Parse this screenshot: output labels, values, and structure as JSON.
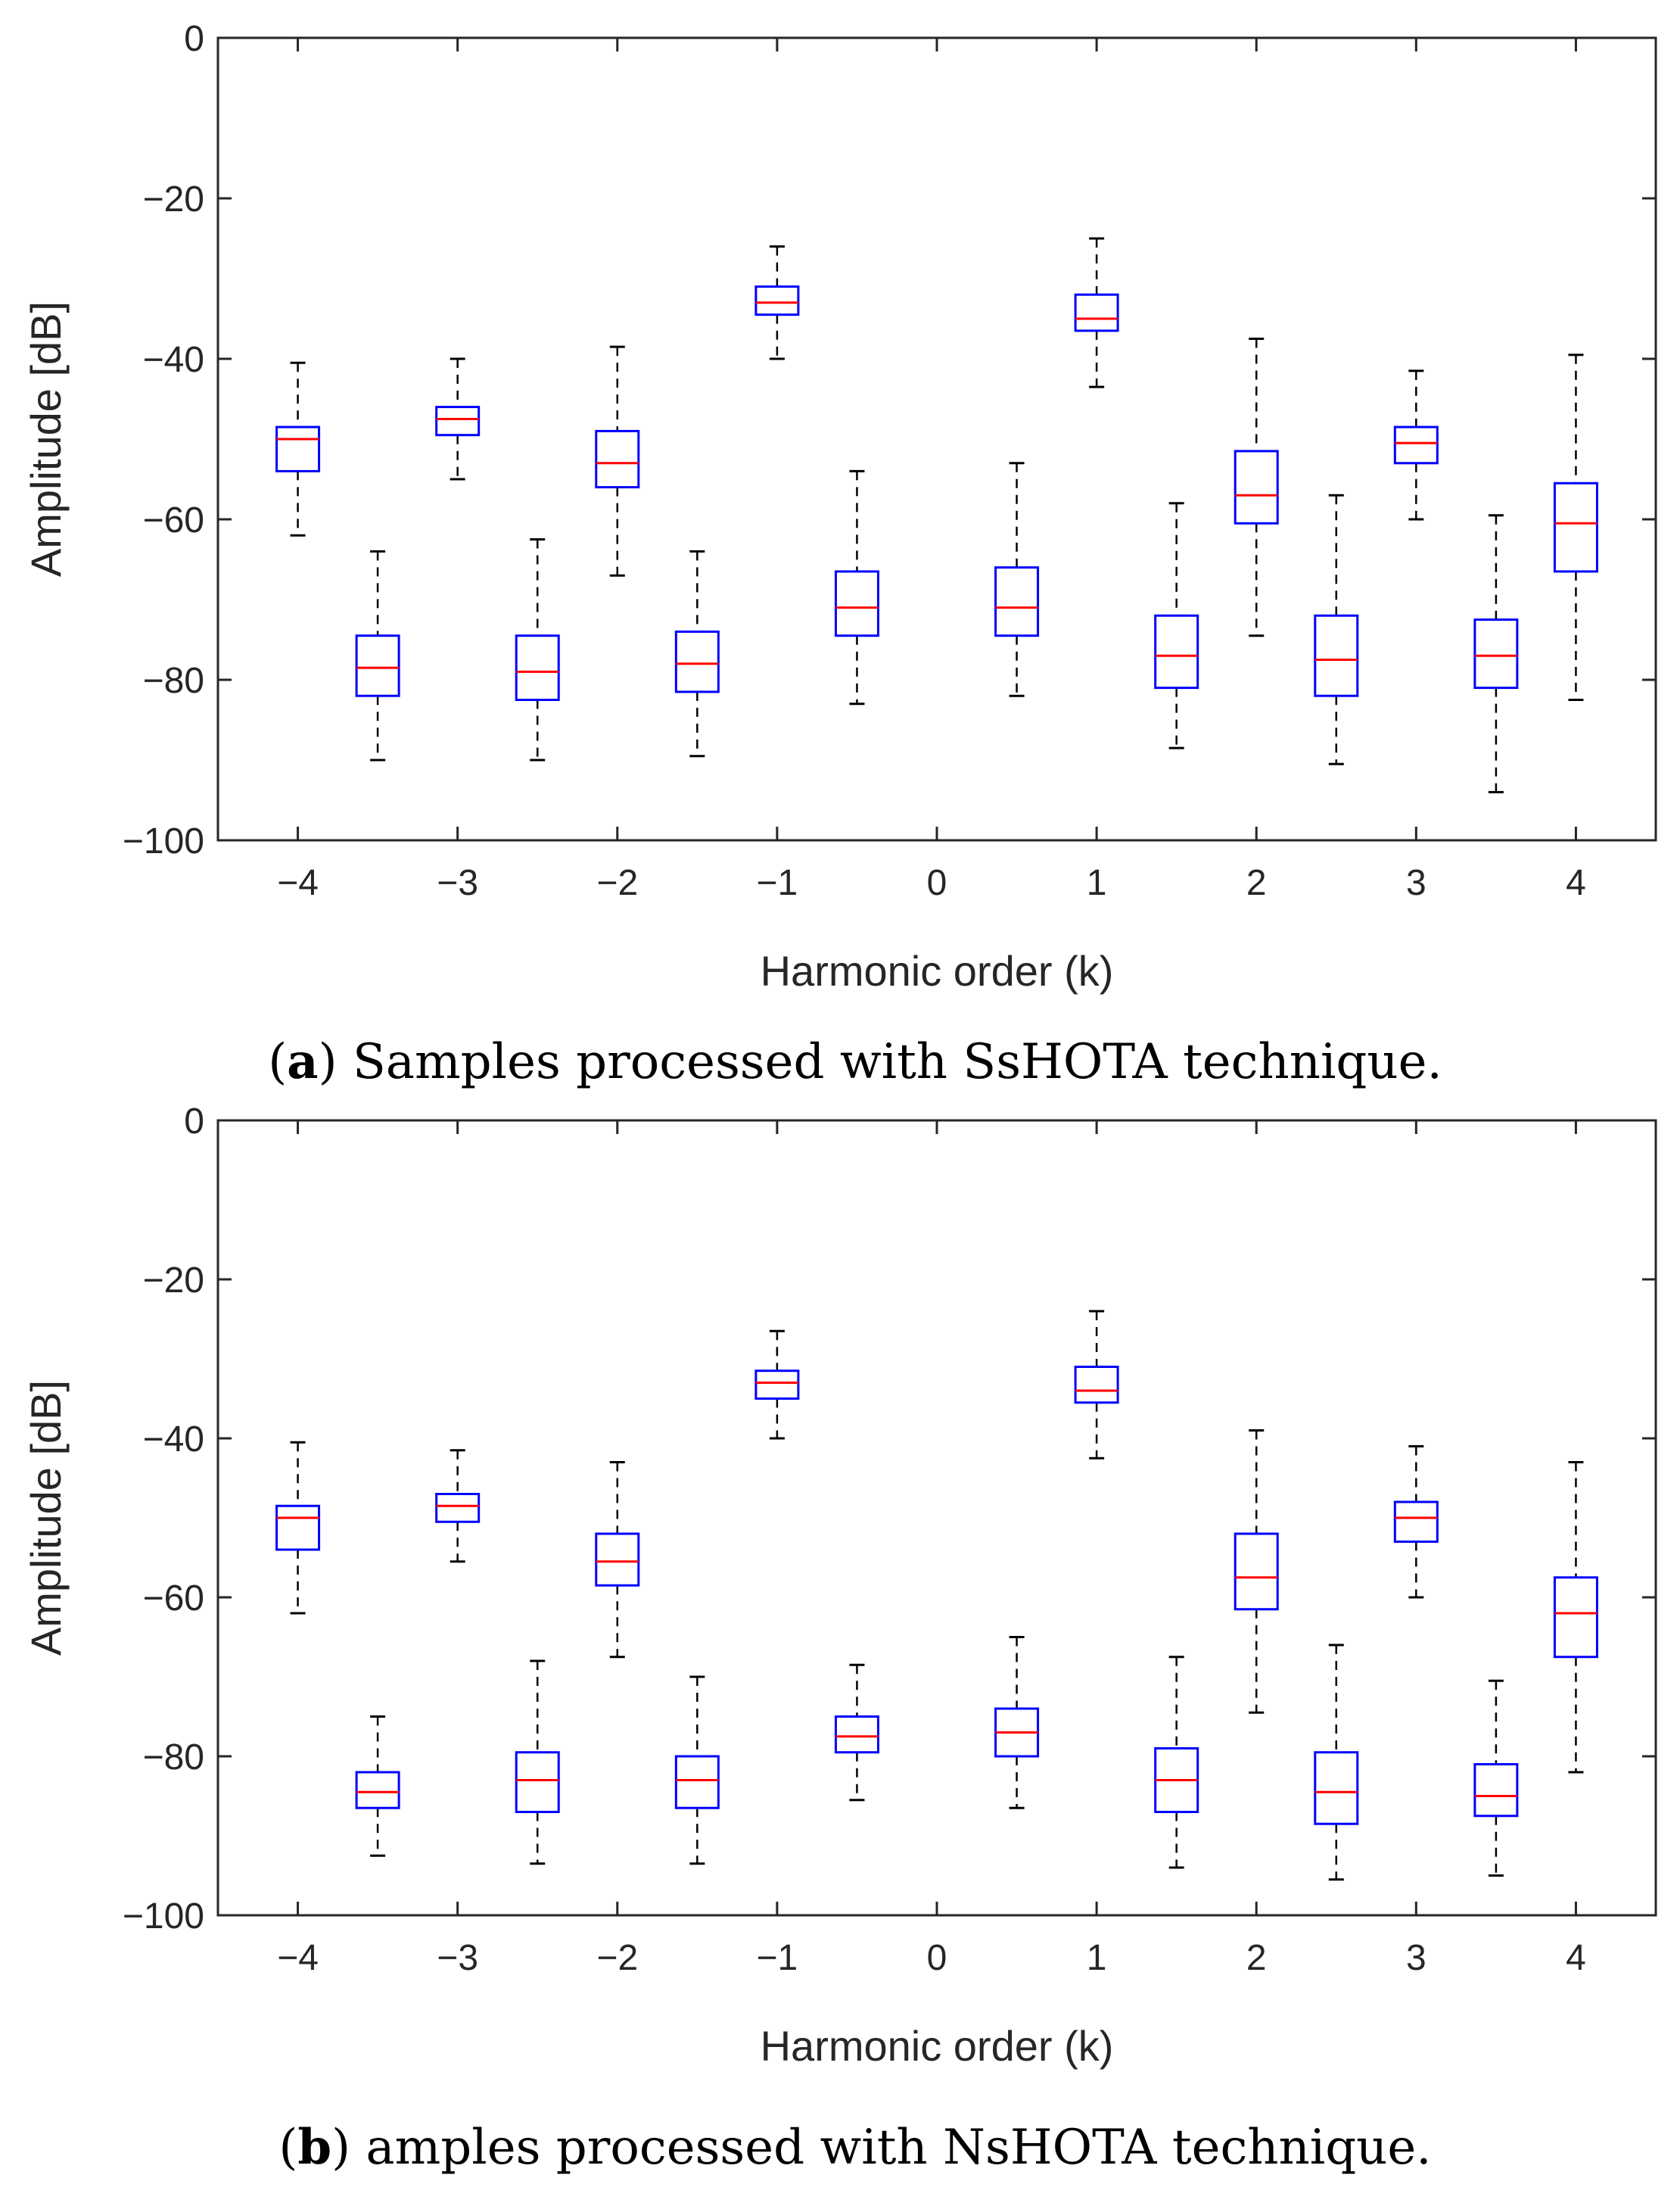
{
  "figure": {
    "colors": {
      "box": "#0000ff",
      "median": "#ff0000",
      "whisker": "#000000",
      "axis": "#262626"
    }
  },
  "chart_data": [
    {
      "type": "boxplot",
      "panel": "a",
      "caption_prefix": "(",
      "caption_label": "a",
      "caption_text": ") Samples processed with SsHOTA technique.",
      "xlabel": "Harmonic order (k)",
      "ylabel": "Amplitude [dB]",
      "ylim": [
        -100,
        0
      ],
      "yticks": [
        0,
        -20,
        -40,
        -60,
        -80,
        -100
      ],
      "ytick_labels": [
        "0",
        "−20",
        "−40",
        "−60",
        "−80",
        "−100"
      ],
      "xlim": [
        -4.5,
        4.5
      ],
      "xticks": [
        -4,
        -3,
        -2,
        -1,
        0,
        1,
        2,
        3,
        4
      ],
      "xtick_labels": [
        "−4",
        "−3",
        "−2",
        "−1",
        "0",
        "1",
        "2",
        "3",
        "4"
      ],
      "boxes": [
        {
          "x": -4,
          "min": -62,
          "q1": -54,
          "median": -50,
          "q3": -48.5,
          "max": -40.5
        },
        {
          "x": -3.5,
          "min": -90,
          "q1": -82,
          "median": -78.5,
          "q3": -74.5,
          "max": -64
        },
        {
          "x": -3,
          "min": -55,
          "q1": -49.5,
          "median": -47.5,
          "q3": -46,
          "max": -40
        },
        {
          "x": -2.5,
          "min": -90,
          "q1": -82.5,
          "median": -79,
          "q3": -74.5,
          "max": -62.5
        },
        {
          "x": -2,
          "min": -67,
          "q1": -56,
          "median": -53,
          "q3": -49,
          "max": -38.5
        },
        {
          "x": -1.5,
          "min": -89.5,
          "q1": -81.5,
          "median": -78,
          "q3": -74,
          "max": -64
        },
        {
          "x": -1,
          "min": -40,
          "q1": -34.5,
          "median": -33,
          "q3": -31,
          "max": -26
        },
        {
          "x": -0.5,
          "min": -83,
          "q1": -74.5,
          "median": -71,
          "q3": -66.5,
          "max": -54
        },
        {
          "x": 0,
          "min": 0,
          "q1": 0,
          "median": 0,
          "q3": 0,
          "max": 0
        },
        {
          "x": 0.5,
          "min": -82,
          "q1": -74.5,
          "median": -71,
          "q3": -66,
          "max": -53
        },
        {
          "x": 1,
          "min": -43.5,
          "q1": -36.5,
          "median": -35,
          "q3": -32,
          "max": -25
        },
        {
          "x": 1.5,
          "min": -88.5,
          "q1": -81,
          "median": -77,
          "q3": -72,
          "max": -58
        },
        {
          "x": 2,
          "min": -74.5,
          "q1": -60.5,
          "median": -57,
          "q3": -51.5,
          "max": -37.5
        },
        {
          "x": 2.5,
          "min": -90.5,
          "q1": -82,
          "median": -77.5,
          "q3": -72,
          "max": -57
        },
        {
          "x": 3,
          "min": -60,
          "q1": -53,
          "median": -50.5,
          "q3": -48.5,
          "max": -41.5
        },
        {
          "x": 3.5,
          "min": -94,
          "q1": -81,
          "median": -77,
          "q3": -72.5,
          "max": -59.5
        },
        {
          "x": 4,
          "min": -82.5,
          "q1": -66.5,
          "median": -60.5,
          "q3": -55.5,
          "max": -39.5
        }
      ]
    },
    {
      "type": "boxplot",
      "panel": "b",
      "caption_prefix": "(",
      "caption_label": "b",
      "caption_text": ") amples processed with NsHOTA technique.",
      "xlabel": "Harmonic order (k)",
      "ylabel": "Amplitude [dB]",
      "ylim": [
        -100,
        0
      ],
      "yticks": [
        0,
        -20,
        -40,
        -60,
        -80,
        -100
      ],
      "ytick_labels": [
        "0",
        "−20",
        "−40",
        "−60",
        "−80",
        "−100"
      ],
      "xlim": [
        -4.5,
        4.5
      ],
      "xticks": [
        -4,
        -3,
        -2,
        -1,
        0,
        1,
        2,
        3,
        4
      ],
      "xtick_labels": [
        "−4",
        "−3",
        "−2",
        "−1",
        "0",
        "1",
        "2",
        "3",
        "4"
      ],
      "boxes": [
        {
          "x": -4,
          "min": -62,
          "q1": -54,
          "median": -50,
          "q3": -48.5,
          "max": -40.5
        },
        {
          "x": -3.5,
          "min": -92.5,
          "q1": -86.5,
          "median": -84.5,
          "q3": -82,
          "max": -75
        },
        {
          "x": -3,
          "min": -55.5,
          "q1": -50.5,
          "median": -48.5,
          "q3": -47,
          "max": -41.5
        },
        {
          "x": -2.5,
          "min": -93.5,
          "q1": -87,
          "median": -83,
          "q3": -79.5,
          "max": -68
        },
        {
          "x": -2,
          "min": -67.5,
          "q1": -58.5,
          "median": -55.5,
          "q3": -52,
          "max": -43
        },
        {
          "x": -1.5,
          "min": -93.5,
          "q1": -86.5,
          "median": -83,
          "q3": -80,
          "max": -70
        },
        {
          "x": -1,
          "min": -40,
          "q1": -35,
          "median": -33,
          "q3": -31.5,
          "max": -26.5
        },
        {
          "x": -0.5,
          "min": -85.5,
          "q1": -79.5,
          "median": -77.5,
          "q3": -75,
          "max": -68.5
        },
        {
          "x": 0,
          "min": 0,
          "q1": 0,
          "median": 0,
          "q3": 0,
          "max": 0
        },
        {
          "x": 0.5,
          "min": -86.5,
          "q1": -80,
          "median": -77,
          "q3": -74,
          "max": -65
        },
        {
          "x": 1,
          "min": -42.5,
          "q1": -35.5,
          "median": -34,
          "q3": -31,
          "max": -24
        },
        {
          "x": 1.5,
          "min": -94,
          "q1": -87,
          "median": -83,
          "q3": -79,
          "max": -67.5
        },
        {
          "x": 2,
          "min": -74.5,
          "q1": -61.5,
          "median": -57.5,
          "q3": -52,
          "max": -39
        },
        {
          "x": 2.5,
          "min": -95.5,
          "q1": -88.5,
          "median": -84.5,
          "q3": -79.5,
          "max": -66
        },
        {
          "x": 3,
          "min": -60,
          "q1": -53,
          "median": -50,
          "q3": -48,
          "max": -41
        },
        {
          "x": 3.5,
          "min": -95,
          "q1": -87.5,
          "median": -85,
          "q3": -81,
          "max": -70.5
        },
        {
          "x": 4,
          "min": -82,
          "q1": -67.5,
          "median": -62,
          "q3": -57.5,
          "max": -43
        }
      ]
    }
  ]
}
